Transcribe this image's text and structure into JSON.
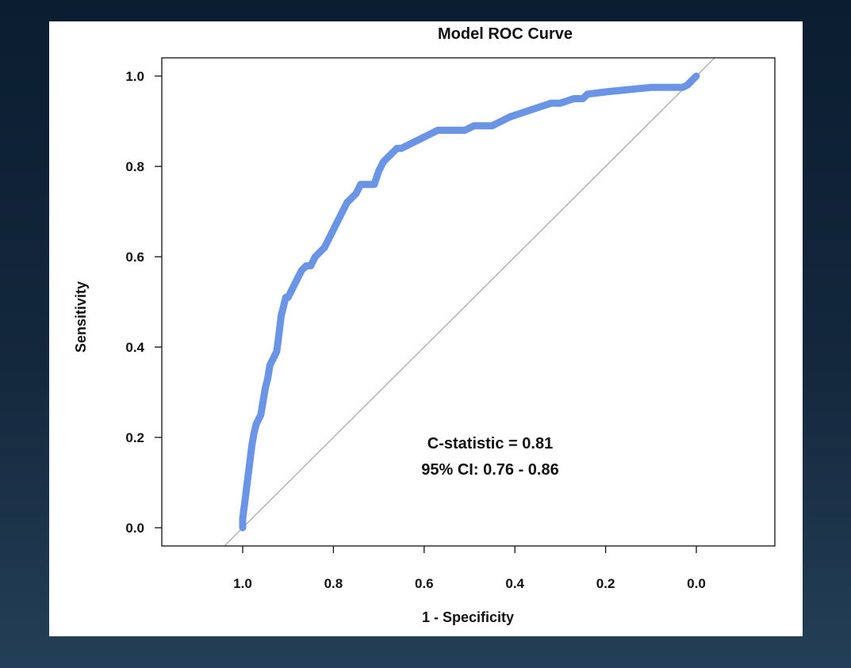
{
  "colors": {
    "background_top": "#0a1d31",
    "background_bottom": "#233f56",
    "panel": "#ffffff",
    "roc_curve": "#6a95e6",
    "reference_line": "#aaaaaa",
    "axes": "#111111"
  },
  "chart_data": {
    "type": "line",
    "title": "Model ROC Curve",
    "xlabel": "1 - Specificity",
    "ylabel": "Sensitivity",
    "xlim": [
      1.15,
      -0.17
    ],
    "ylim": [
      -0.04,
      1.04
    ],
    "x_reversed": true,
    "xticks": [
      1.0,
      0.8,
      0.6,
      0.4,
      0.2,
      0.0
    ],
    "xtick_labels": [
      "1.0",
      "0.8",
      "0.6",
      "0.4",
      "0.2",
      "0.0"
    ],
    "yticks": [
      0.0,
      0.2,
      0.4,
      0.6,
      0.8,
      1.0
    ],
    "ytick_labels": [
      "0.0",
      "0.2",
      "0.4",
      "0.6",
      "0.8",
      "1.0"
    ],
    "grid": false,
    "annotations": [
      "C-statistic = 0.81",
      "95% CI: 0.76 - 0.86"
    ],
    "series": [
      {
        "x": [
          1.0,
          1.0,
          0.995,
          0.99,
          0.985,
          0.98,
          0.975,
          0.97,
          0.965,
          0.96,
          0.955,
          0.95,
          0.945,
          0.94,
          0.935,
          0.925,
          0.92,
          0.915,
          0.91,
          0.905,
          0.9,
          0.89,
          0.88,
          0.87,
          0.86,
          0.85,
          0.84,
          0.83,
          0.82,
          0.81,
          0.8,
          0.79,
          0.78,
          0.77,
          0.76,
          0.75,
          0.74,
          0.73,
          0.71,
          0.7,
          0.69,
          0.68,
          0.67,
          0.66,
          0.65,
          0.63,
          0.61,
          0.59,
          0.57,
          0.55,
          0.53,
          0.51,
          0.49,
          0.47,
          0.45,
          0.43,
          0.41,
          0.38,
          0.35,
          0.32,
          0.3,
          0.27,
          0.25,
          0.24,
          0.2,
          0.15,
          0.1,
          0.05,
          0.03,
          0.02,
          0.01,
          0.0
        ],
        "y": [
          0.0,
          0.02,
          0.06,
          0.1,
          0.14,
          0.18,
          0.21,
          0.23,
          0.24,
          0.25,
          0.28,
          0.31,
          0.33,
          0.36,
          0.37,
          0.39,
          0.43,
          0.47,
          0.49,
          0.51,
          0.51,
          0.53,
          0.55,
          0.57,
          0.58,
          0.58,
          0.6,
          0.61,
          0.62,
          0.64,
          0.66,
          0.68,
          0.7,
          0.72,
          0.73,
          0.74,
          0.76,
          0.76,
          0.76,
          0.79,
          0.81,
          0.82,
          0.83,
          0.84,
          0.84,
          0.85,
          0.86,
          0.87,
          0.88,
          0.88,
          0.88,
          0.88,
          0.89,
          0.89,
          0.89,
          0.9,
          0.91,
          0.92,
          0.93,
          0.94,
          0.94,
          0.95,
          0.95,
          0.96,
          0.965,
          0.97,
          0.975,
          0.975,
          0.975,
          0.98,
          0.99,
          1.0
        ]
      }
    ],
    "reference_line": {
      "x": [
        1.04,
        -0.04
      ],
      "y": [
        -0.04,
        1.04
      ]
    }
  }
}
